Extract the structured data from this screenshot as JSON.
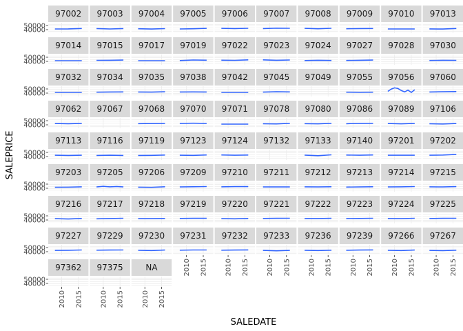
{
  "chart_data": {
    "type": "line",
    "title": "",
    "xlabel": "SALEDATE",
    "ylabel": "SALEPRICE",
    "x_tick_labels": [
      "2010",
      "2015"
    ],
    "y_tick_labels": [
      "50000",
      "40000"
    ],
    "x_domain": [
      2006,
      2018
    ],
    "y_domain": [
      -20000,
      80000
    ],
    "grid": true,
    "legend": "none",
    "line_color": "#3366FF",
    "strip_fill": "#D9D9D9",
    "grid_color": "#EBEBEB",
    "default_level": 20000,
    "panels": [
      {
        "label": "97002",
        "x": [
          2008,
          2012,
          2016
        ],
        "y": [
          20000,
          21000,
          25000
        ]
      },
      {
        "label": "97003",
        "x": [
          2008,
          2012,
          2016
        ],
        "y": [
          24000,
          20000,
          24000
        ]
      },
      {
        "label": "97004",
        "x": [
          2008,
          2012,
          2016
        ],
        "y": [
          22000,
          19000,
          23000
        ]
      },
      {
        "label": "97005",
        "x": [
          2008,
          2012,
          2016
        ],
        "y": [
          20000,
          22000,
          26000
        ]
      },
      {
        "label": "97006",
        "x": [
          2008,
          2012,
          2016
        ],
        "y": [
          26000,
          24000,
          27000
        ]
      },
      {
        "label": "97007",
        "x": [
          2008,
          2012,
          2016
        ],
        "y": [
          24000,
          28000,
          27000
        ]
      },
      {
        "label": "97008",
        "x": [
          2008,
          2012,
          2016
        ],
        "y": [
          26000,
          22000,
          27000
        ]
      },
      {
        "label": "97009",
        "x": [
          2008,
          2012,
          2016
        ],
        "y": [
          22000,
          24000,
          25000
        ]
      },
      {
        "label": "97010",
        "x": [
          2008,
          2012,
          2016
        ],
        "y": [
          20000,
          20000,
          20000
        ]
      },
      {
        "label": "97013",
        "x": [
          2008,
          2012,
          2016
        ],
        "y": [
          21000,
          19000,
          25000
        ]
      },
      {
        "label": "97014",
        "x": [
          2008,
          2012,
          2016
        ],
        "y": [
          20000,
          20000,
          20000
        ]
      },
      {
        "label": "97015",
        "x": [
          2008,
          2012,
          2016
        ],
        "y": [
          23000,
          24000,
          26000
        ]
      },
      {
        "label": "97017",
        "x": [
          2008,
          2012,
          2016
        ],
        "y": [
          20000,
          20000,
          20000
        ]
      },
      {
        "label": "97019",
        "x": [
          2008,
          2012,
          2016
        ],
        "y": [
          21000,
          27000,
          25000
        ]
      },
      {
        "label": "97022",
        "x": [
          2008,
          2012,
          2016
        ],
        "y": [
          25000,
          23000,
          28000
        ]
      },
      {
        "label": "97023",
        "x": [
          2008,
          2012,
          2016
        ],
        "y": [
          28000,
          24000,
          27000
        ]
      },
      {
        "label": "97024",
        "x": [
          2008,
          2012,
          2016
        ],
        "y": [
          21000,
          24000,
          22000
        ]
      },
      {
        "label": "97027",
        "x": [
          2008,
          2012,
          2016
        ],
        "y": [
          22000,
          24000,
          26000
        ]
      },
      {
        "label": "97028",
        "x": [],
        "y": []
      },
      {
        "label": "97030",
        "x": [
          2008,
          2012,
          2016
        ],
        "y": [
          22000,
          24000,
          23000
        ]
      },
      {
        "label": "97032",
        "x": [
          2008,
          2012,
          2016
        ],
        "y": [
          20000,
          20000,
          20000
        ]
      },
      {
        "label": "97034",
        "x": [
          2008,
          2012,
          2016
        ],
        "y": [
          22000,
          24000,
          25000
        ]
      },
      {
        "label": "97035",
        "x": [
          2008,
          2012,
          2016
        ],
        "y": [
          24000,
          23000,
          26000
        ]
      },
      {
        "label": "97038",
        "x": [
          2008,
          2012,
          2016
        ],
        "y": [
          24000,
          25000,
          24000
        ]
      },
      {
        "label": "97042",
        "x": [
          2008,
          2012,
          2016
        ],
        "y": [
          20000,
          20000,
          20000
        ]
      },
      {
        "label": "97045",
        "x": [
          2008,
          2012,
          2016
        ],
        "y": [
          23000,
          26000,
          25000
        ]
      },
      {
        "label": "97049",
        "x": [],
        "y": []
      },
      {
        "label": "97055",
        "x": [
          2008,
          2012,
          2016
        ],
        "y": [
          22000,
          21000,
          22000
        ]
      },
      {
        "label": "97056",
        "x": [
          2008,
          2009,
          2010,
          2011,
          2012,
          2013,
          2014,
          2015,
          2016
        ],
        "y": [
          30000,
          52000,
          64000,
          58000,
          38000,
          25000,
          42000,
          20000,
          46000
        ]
      },
      {
        "label": "97060",
        "x": [
          2008,
          2012,
          2016
        ],
        "y": [
          24000,
          26000,
          28000
        ]
      },
      {
        "label": "97062",
        "x": [
          2008,
          2012,
          2016
        ],
        "y": [
          26000,
          24000,
          27000
        ]
      },
      {
        "label": "97067",
        "x": [],
        "y": []
      },
      {
        "label": "97068",
        "x": [
          2008,
          2012,
          2016
        ],
        "y": [
          25000,
          26000,
          27000
        ]
      },
      {
        "label": "97070",
        "x": [
          2008,
          2012,
          2016
        ],
        "y": [
          27000,
          29000,
          27000
        ]
      },
      {
        "label": "97071",
        "x": [
          2008,
          2012,
          2016
        ],
        "y": [
          20000,
          20000,
          20000
        ]
      },
      {
        "label": "97078",
        "x": [
          2008,
          2012,
          2016
        ],
        "y": [
          24000,
          22000,
          28000
        ]
      },
      {
        "label": "97080",
        "x": [
          2008,
          2012,
          2016
        ],
        "y": [
          25000,
          23000,
          28000
        ]
      },
      {
        "label": "97086",
        "x": [
          2008,
          2012,
          2016
        ],
        "y": [
          24000,
          27000,
          28000
        ]
      },
      {
        "label": "97089",
        "x": [
          2008,
          2012,
          2016
        ],
        "y": [
          26000,
          23000,
          27000
        ]
      },
      {
        "label": "97106",
        "x": [
          2008,
          2012,
          2016
        ],
        "y": [
          24000,
          21000,
          26000
        ]
      },
      {
        "label": "97113",
        "x": [
          2008,
          2012,
          2016
        ],
        "y": [
          26000,
          24000,
          26000
        ]
      },
      {
        "label": "97116",
        "x": [
          2008,
          2012,
          2016
        ],
        "y": [
          24000,
          26000,
          24000
        ]
      },
      {
        "label": "97119",
        "x": [
          2008,
          2012,
          2016
        ],
        "y": [
          24000,
          25000,
          28000
        ]
      },
      {
        "label": "97123",
        "x": [
          2008,
          2012,
          2016
        ],
        "y": [
          26000,
          25000,
          29000
        ]
      },
      {
        "label": "97124",
        "x": [
          2008,
          2012,
          2016
        ],
        "y": [
          29000,
          26000,
          28000
        ]
      },
      {
        "label": "97132",
        "x": [],
        "y": []
      },
      {
        "label": "97133",
        "x": [
          2008,
          2012,
          2016
        ],
        "y": [
          27000,
          21000,
          30000
        ]
      },
      {
        "label": "97140",
        "x": [
          2008,
          2012,
          2016
        ],
        "y": [
          28000,
          26000,
          29000
        ]
      },
      {
        "label": "97201",
        "x": [
          2008,
          2012,
          2016
        ],
        "y": [
          26000,
          26000,
          26000
        ]
      },
      {
        "label": "97202",
        "x": [
          2008,
          2012,
          2016
        ],
        "y": [
          26000,
          28000,
          34000
        ]
      },
      {
        "label": "97203",
        "x": [
          2008,
          2012,
          2016
        ],
        "y": [
          23000,
          24000,
          27000
        ]
      },
      {
        "label": "97205",
        "x": [
          2008,
          2010,
          2012,
          2014,
          2016
        ],
        "y": [
          26000,
          32000,
          27000,
          31000,
          26000
        ]
      },
      {
        "label": "97206",
        "x": [
          2008,
          2012,
          2016
        ],
        "y": [
          24000,
          22000,
          28000
        ]
      },
      {
        "label": "97209",
        "x": [
          2008,
          2012,
          2016
        ],
        "y": [
          26000,
          28000,
          30000
        ]
      },
      {
        "label": "97210",
        "x": [
          2008,
          2012,
          2016
        ],
        "y": [
          27000,
          29000,
          29000
        ]
      },
      {
        "label": "97211",
        "x": [
          2008,
          2012,
          2016
        ],
        "y": [
          26000,
          26000,
          26000
        ]
      },
      {
        "label": "97212",
        "x": [
          2008,
          2012,
          2016
        ],
        "y": [
          27000,
          26000,
          28000
        ]
      },
      {
        "label": "97213",
        "x": [
          2008,
          2012,
          2016
        ],
        "y": [
          25000,
          26000,
          28000
        ]
      },
      {
        "label": "97214",
        "x": [
          2008,
          2012,
          2016
        ],
        "y": [
          26000,
          27000,
          30000
        ]
      },
      {
        "label": "97215",
        "x": [
          2008,
          2012,
          2016
        ],
        "y": [
          27000,
          26000,
          29000
        ]
      },
      {
        "label": "97216",
        "x": [
          2008,
          2012,
          2016
        ],
        "y": [
          26000,
          23000,
          28000
        ]
      },
      {
        "label": "97217",
        "x": [
          2008,
          2012,
          2016
        ],
        "y": [
          25000,
          27000,
          30000
        ]
      },
      {
        "label": "97218",
        "x": [
          2008,
          2012,
          2016
        ],
        "y": [
          26000,
          26000,
          28000
        ]
      },
      {
        "label": "97219",
        "x": [
          2008,
          2012,
          2016
        ],
        "y": [
          28000,
          29000,
          29000
        ]
      },
      {
        "label": "97220",
        "x": [
          2008,
          2012,
          2016
        ],
        "y": [
          26000,
          25000,
          28000
        ]
      },
      {
        "label": "97221",
        "x": [
          2008,
          2012,
          2016
        ],
        "y": [
          28000,
          29000,
          30000
        ]
      },
      {
        "label": "97222",
        "x": [
          2008,
          2012,
          2016
        ],
        "y": [
          27000,
          27000,
          29000
        ]
      },
      {
        "label": "97223",
        "x": [
          2008,
          2012,
          2016
        ],
        "y": [
          27000,
          28000,
          30000
        ]
      },
      {
        "label": "97224",
        "x": [
          2008,
          2012,
          2016
        ],
        "y": [
          27000,
          26000,
          30000
        ]
      },
      {
        "label": "97225",
        "x": [
          2008,
          2012,
          2016
        ],
        "y": [
          27000,
          29000,
          30000
        ]
      },
      {
        "label": "97227",
        "x": [
          2008,
          2012,
          2016
        ],
        "y": [
          26000,
          27000,
          30000
        ]
      },
      {
        "label": "97229",
        "x": [
          2008,
          2012,
          2016
        ],
        "y": [
          28000,
          29000,
          30000
        ]
      },
      {
        "label": "97230",
        "x": [
          2008,
          2012,
          2016
        ],
        "y": [
          27000,
          25000,
          29000
        ]
      },
      {
        "label": "97231",
        "x": [
          2008,
          2012,
          2016
        ],
        "y": [
          28000,
          30000,
          30000
        ]
      },
      {
        "label": "97232",
        "x": [
          2008,
          2012,
          2016
        ],
        "y": [
          28000,
          29000,
          31000
        ]
      },
      {
        "label": "97233",
        "x": [
          2008,
          2012,
          2016
        ],
        "y": [
          26000,
          22000,
          26000
        ]
      },
      {
        "label": "97236",
        "x": [
          2008,
          2012,
          2016
        ],
        "y": [
          27000,
          25000,
          28000
        ]
      },
      {
        "label": "97239",
        "x": [
          2008,
          2012,
          2016
        ],
        "y": [
          27000,
          29000,
          31000
        ]
      },
      {
        "label": "97266",
        "x": [
          2008,
          2012,
          2016
        ],
        "y": [
          27000,
          25000,
          29000
        ]
      },
      {
        "label": "97267",
        "x": [
          2008,
          2012,
          2016
        ],
        "y": [
          26000,
          24000,
          28000
        ]
      },
      {
        "label": "97362",
        "x": [],
        "y": []
      },
      {
        "label": "97375",
        "x": [],
        "y": []
      },
      {
        "label": "NA",
        "x": [],
        "y": []
      }
    ]
  }
}
